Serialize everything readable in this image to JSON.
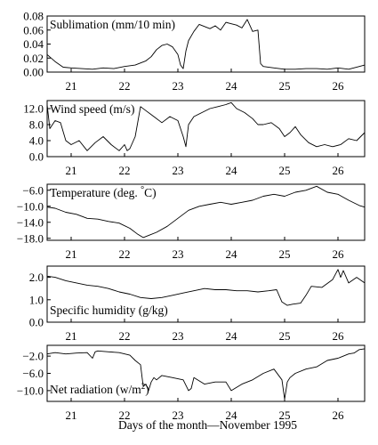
{
  "chart_data": {
    "type": "line",
    "xlabel": "Days of the month—November 1995",
    "x_ticks": [
      "21",
      "22",
      "23",
      "24",
      "25",
      "26"
    ],
    "xlim": [
      20.55,
      26.5
    ],
    "panels": [
      {
        "id": "sublimation",
        "title_parts": [
          "Sublimation (mm/10 min)"
        ],
        "ylim": [
          0,
          0.08
        ],
        "y_ticks": [
          0,
          0.02,
          0.04,
          0.06,
          0.08
        ],
        "y_tick_labels": [
          "0.00",
          "0.02",
          "0.04",
          "0.06",
          "0.08"
        ],
        "x": [
          20.55,
          20.7,
          20.85,
          21.0,
          21.2,
          21.4,
          21.6,
          21.8,
          22.0,
          22.2,
          22.4,
          22.5,
          22.6,
          22.7,
          22.8,
          22.9,
          23.0,
          23.05,
          23.1,
          23.15,
          23.2,
          23.3,
          23.4,
          23.5,
          23.6,
          23.7,
          23.8,
          23.9,
          24.0,
          24.1,
          24.2,
          24.3,
          24.4,
          24.5,
          24.55,
          24.6,
          24.8,
          25.0,
          25.2,
          25.4,
          25.6,
          25.8,
          26.0,
          26.2,
          26.4,
          26.5
        ],
        "y": [
          0.025,
          0.015,
          0.007,
          0.006,
          0.005,
          0.004,
          0.006,
          0.005,
          0.008,
          0.01,
          0.016,
          0.022,
          0.032,
          0.038,
          0.04,
          0.036,
          0.025,
          0.01,
          0.005,
          0.03,
          0.045,
          0.058,
          0.068,
          0.065,
          0.062,
          0.066,
          0.06,
          0.071,
          0.069,
          0.067,
          0.063,
          0.075,
          0.058,
          0.06,
          0.012,
          0.008,
          0.006,
          0.004,
          0.004,
          0.005,
          0.005,
          0.004,
          0.006,
          0.004,
          0.008,
          0.01
        ]
      },
      {
        "id": "wind-speed",
        "title_parts": [
          "Wind speed (m/s)"
        ],
        "ylim": [
          0,
          14
        ],
        "y_ticks": [
          0,
          4,
          8,
          12
        ],
        "y_tick_labels": [
          "0.0",
          "4.0",
          "8.0",
          "12.0"
        ],
        "x": [
          20.55,
          20.6,
          20.7,
          20.8,
          20.9,
          21.0,
          21.15,
          21.3,
          21.45,
          21.6,
          21.75,
          21.9,
          22.0,
          22.05,
          22.1,
          22.2,
          22.3,
          22.4,
          22.55,
          22.7,
          22.85,
          23.0,
          23.1,
          23.15,
          23.2,
          23.3,
          23.45,
          23.6,
          23.75,
          23.9,
          24.0,
          24.1,
          24.25,
          24.4,
          24.5,
          24.6,
          24.75,
          24.9,
          25.0,
          25.1,
          25.2,
          25.3,
          25.45,
          25.6,
          25.75,
          25.9,
          26.05,
          26.2,
          26.35,
          26.5
        ],
        "y": [
          13.0,
          7.0,
          9.0,
          8.5,
          4.0,
          3.0,
          4.0,
          1.5,
          3.5,
          5.0,
          3.0,
          1.5,
          3.0,
          1.5,
          2.0,
          5.0,
          12.5,
          11.5,
          10.0,
          8.5,
          10.0,
          9.0,
          5.0,
          2.5,
          8.0,
          10.0,
          11.0,
          12.0,
          12.5,
          13.0,
          13.5,
          12.0,
          11.0,
          9.5,
          8.0,
          8.0,
          8.5,
          7.0,
          5.0,
          6.0,
          7.5,
          5.5,
          3.5,
          2.5,
          3.0,
          2.5,
          3.0,
          4.5,
          4.0,
          6.0
        ]
      },
      {
        "id": "temperature",
        "title_parts": [
          "Temperature (deg. ",
          "°",
          "C)"
        ],
        "ylim": [
          -18.5,
          -4.5
        ],
        "y_ticks": [
          -18,
          -14,
          -10,
          -6
        ],
        "y_tick_labels": [
          "−18.0",
          "−14.0",
          "−10.0",
          "−6.0"
        ],
        "x": [
          20.55,
          20.7,
          20.9,
          21.1,
          21.3,
          21.5,
          21.7,
          21.9,
          22.1,
          22.25,
          22.35,
          22.45,
          22.6,
          22.8,
          23.0,
          23.2,
          23.4,
          23.6,
          23.8,
          24.0,
          24.2,
          24.4,
          24.6,
          24.8,
          25.0,
          25.2,
          25.4,
          25.6,
          25.8,
          26.0,
          26.2,
          26.4,
          26.5
        ],
        "y": [
          -10.2,
          -10.5,
          -11.5,
          -12.0,
          -13.0,
          -13.2,
          -13.8,
          -14.2,
          -15.5,
          -17.0,
          -17.8,
          -17.3,
          -16.5,
          -15.0,
          -13.0,
          -11.0,
          -10.0,
          -9.5,
          -9.0,
          -9.5,
          -9.0,
          -8.5,
          -7.5,
          -7.0,
          -7.5,
          -6.5,
          -6.0,
          -5.0,
          -6.5,
          -7.0,
          -8.5,
          -9.8,
          -10.2
        ]
      },
      {
        "id": "specific-humidity",
        "title_parts": [
          "Specific humidity (g/kg)"
        ],
        "ylim": [
          0,
          2.5
        ],
        "y_ticks": [
          0,
          1,
          2
        ],
        "y_tick_labels": [
          "0.0",
          "1.0",
          "2.0"
        ],
        "x": [
          20.55,
          20.7,
          20.9,
          21.1,
          21.3,
          21.5,
          21.7,
          21.9,
          22.1,
          22.3,
          22.5,
          22.7,
          22.9,
          23.1,
          23.3,
          23.5,
          23.7,
          23.9,
          24.1,
          24.3,
          24.5,
          24.7,
          24.85,
          24.95,
          25.05,
          25.15,
          25.3,
          25.4,
          25.5,
          25.7,
          25.9,
          26.0,
          26.05,
          26.1,
          26.2,
          26.35,
          26.5
        ],
        "y": [
          2.05,
          2.0,
          1.85,
          1.75,
          1.65,
          1.6,
          1.5,
          1.35,
          1.25,
          1.1,
          1.05,
          1.1,
          1.2,
          1.3,
          1.4,
          1.5,
          1.45,
          1.45,
          1.4,
          1.4,
          1.35,
          1.4,
          1.45,
          0.9,
          0.75,
          0.8,
          0.85,
          1.2,
          1.6,
          1.55,
          1.9,
          2.35,
          2.0,
          2.3,
          1.75,
          2.0,
          1.75
        ]
      },
      {
        "id": "net-radiation",
        "title_parts": [
          "Net radiation (w/m",
          "2",
          ")"
        ],
        "ylim": [
          -12.5,
          0.5
        ],
        "y_ticks": [
          -10,
          -6,
          -2
        ],
        "y_tick_labels": [
          "−10.0",
          "−6.0",
          "−2.0"
        ],
        "x": [
          20.55,
          20.7,
          20.9,
          21.1,
          21.3,
          21.4,
          21.45,
          21.5,
          21.7,
          21.9,
          22.1,
          22.2,
          22.3,
          22.35,
          22.4,
          22.45,
          22.5,
          22.55,
          22.6,
          22.7,
          22.9,
          23.1,
          23.2,
          23.25,
          23.3,
          23.5,
          23.7,
          23.9,
          24.0,
          24.2,
          24.4,
          24.6,
          24.8,
          24.95,
          25.0,
          25.05,
          25.1,
          25.2,
          25.4,
          25.6,
          25.8,
          26.0,
          26.2,
          26.3,
          26.4,
          26.5
        ],
        "y": [
          -1.5,
          -1.2,
          -1.5,
          -1.3,
          -1.2,
          -2.5,
          -1.0,
          -0.8,
          -1.0,
          -1.2,
          -1.8,
          -3.0,
          -4.0,
          -9.0,
          -8.5,
          -10.0,
          -8.0,
          -7.0,
          -7.5,
          -6.5,
          -7.0,
          -7.5,
          -10.0,
          -9.5,
          -7.0,
          -8.5,
          -8.0,
          -8.0,
          -10.0,
          -8.5,
          -7.5,
          -6.0,
          -5.0,
          -7.5,
          -12.0,
          -8.0,
          -7.0,
          -6.0,
          -5.0,
          -4.5,
          -3.0,
          -2.5,
          -1.5,
          -1.3,
          -0.5,
          -0.3
        ]
      }
    ]
  }
}
